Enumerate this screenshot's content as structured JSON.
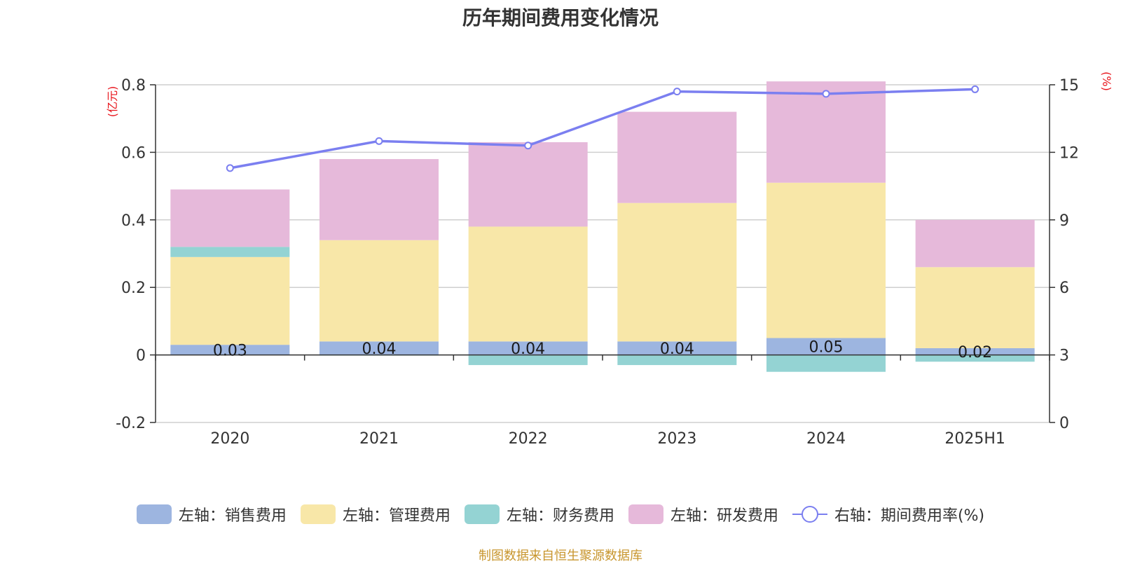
{
  "page": {
    "source_note": "制图数据来自恒生聚源数据库"
  },
  "colors": {
    "sales": "#9db5e0",
    "admin": "#f8e7a8",
    "finance": "#94d3d3",
    "rd": "#e6b9da",
    "rate": "#7b7ff0",
    "unit": "#e8141b",
    "grid": "#cfcfcf",
    "axis": "#333333"
  },
  "chart_data": {
    "type": "bar",
    "title": "历年期间费用变化情况",
    "stacked": true,
    "categories": [
      "2020",
      "2021",
      "2022",
      "2023",
      "2024",
      "2025H1"
    ],
    "y_left": {
      "unit_label": "(亿元)",
      "ylim": [
        -0.2,
        0.8
      ],
      "ticks": [
        "-0.2",
        "0",
        "0.2",
        "0.4",
        "0.6",
        "0.8"
      ]
    },
    "y_right": {
      "unit_label": "(%)",
      "ylim": [
        0,
        15
      ],
      "ticks": [
        "0",
        "3",
        "6",
        "9",
        "12",
        "15"
      ]
    },
    "grid": true,
    "legend_position": "bottom",
    "series": [
      {
        "name": "左轴：销售费用",
        "type": "bar",
        "axis": "left",
        "values": [
          0.03,
          0.04,
          0.04,
          0.04,
          0.05,
          0.02
        ],
        "labels": [
          "0.03",
          "0.04",
          "0.04",
          "0.04",
          "0.05",
          "0.02"
        ]
      },
      {
        "name": "左轴：管理费用",
        "type": "bar",
        "axis": "left",
        "values": [
          0.26,
          0.3,
          0.34,
          0.41,
          0.46,
          0.24
        ]
      },
      {
        "name": "左轴：财务费用",
        "type": "bar",
        "axis": "left",
        "values": [
          0.03,
          -0.002,
          -0.03,
          -0.03,
          -0.05,
          -0.02
        ]
      },
      {
        "name": "左轴：研发费用",
        "type": "bar",
        "axis": "left",
        "values": [
          0.17,
          0.24,
          0.25,
          0.27,
          0.3,
          0.14
        ]
      },
      {
        "name": "右轴：期间费用率(%)",
        "type": "line",
        "axis": "right",
        "values": [
          11.3,
          12.5,
          12.3,
          14.7,
          14.6,
          14.8
        ]
      }
    ]
  }
}
